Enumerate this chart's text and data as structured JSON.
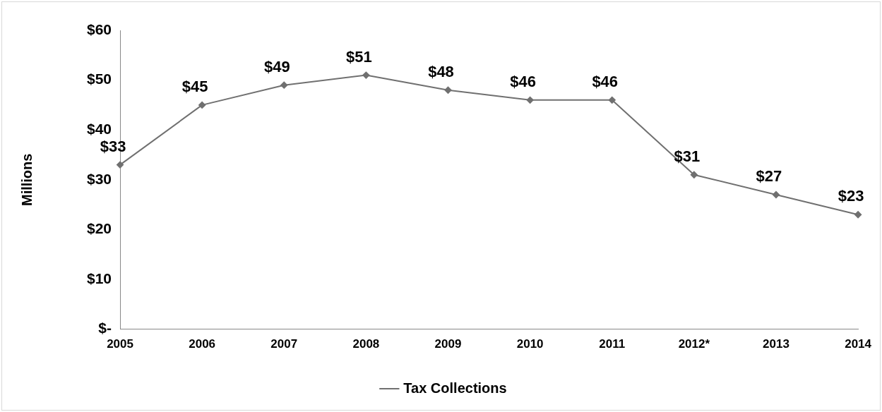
{
  "chart_data": {
    "type": "line",
    "ylabel": "Millions",
    "categories": [
      "2005",
      "2006",
      "2007",
      "2008",
      "2009",
      "2010",
      "2011",
      "2012*",
      "2013",
      "2014"
    ],
    "series": [
      {
        "name": "Tax Collections",
        "color": "#707070",
        "values": [
          33,
          45,
          49,
          51,
          48,
          46,
          46,
          31,
          27,
          23
        ],
        "value_labels": [
          "$33",
          "$45",
          "$49",
          "$51",
          "$48",
          "$46",
          "$46",
          "$31",
          "$27",
          "$23"
        ]
      }
    ],
    "ylim": [
      0,
      60
    ],
    "yticks": [
      {
        "value": 0,
        "label": "$-"
      },
      {
        "value": 10,
        "label": "$10"
      },
      {
        "value": 20,
        "label": "$20"
      },
      {
        "value": 30,
        "label": "$30"
      },
      {
        "value": 40,
        "label": "$40"
      },
      {
        "value": 50,
        "label": "$50"
      },
      {
        "value": 60,
        "label": "$60"
      }
    ],
    "grid": false,
    "legend": "bottom",
    "marker": "diamond",
    "line_style": "solid"
  }
}
